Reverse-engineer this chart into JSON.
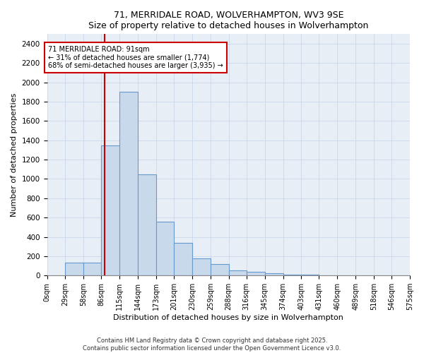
{
  "title_line1": "71, MERRIDALE ROAD, WOLVERHAMPTON, WV3 9SE",
  "title_line2": "Size of property relative to detached houses in Wolverhampton",
  "xlabel": "Distribution of detached houses by size in Wolverhampton",
  "ylabel": "Number of detached properties",
  "bin_labels": [
    "0sqm",
    "29sqm",
    "58sqm",
    "86sqm",
    "115sqm",
    "144sqm",
    "173sqm",
    "201sqm",
    "230sqm",
    "259sqm",
    "288sqm",
    "316sqm",
    "345sqm",
    "374sqm",
    "403sqm",
    "431sqm",
    "460sqm",
    "489sqm",
    "518sqm",
    "546sqm",
    "575sqm"
  ],
  "bin_edges": [
    0,
    29,
    58,
    86,
    115,
    144,
    173,
    201,
    230,
    259,
    288,
    316,
    345,
    374,
    403,
    431,
    460,
    489,
    518,
    546,
    575
  ],
  "bar_heights": [
    5,
    130,
    130,
    1350,
    1900,
    1050,
    560,
    340,
    175,
    120,
    55,
    40,
    20,
    12,
    8,
    5,
    4,
    2,
    1,
    1
  ],
  "bar_color": "#c9d9ec",
  "bar_edge_color": "#6699cc",
  "property_size": 91,
  "vline_color": "#cc0000",
  "annotation_text": "71 MERRIDALE ROAD: 91sqm\n← 31% of detached houses are smaller (1,774)\n68% of semi-detached houses are larger (3,935) →",
  "annotation_box_color": "white",
  "annotation_edge_color": "#cc0000",
  "ylim": [
    0,
    2500
  ],
  "yticks": [
    0,
    200,
    400,
    600,
    800,
    1000,
    1200,
    1400,
    1600,
    1800,
    2000,
    2200,
    2400
  ],
  "grid_color": "#c8d8e8",
  "background_color": "#e8eef6",
  "footer_text": "Contains HM Land Registry data © Crown copyright and database right 2025.\nContains public sector information licensed under the Open Government Licence v3.0.",
  "fig_width": 6.0,
  "fig_height": 5.0,
  "dpi": 100
}
